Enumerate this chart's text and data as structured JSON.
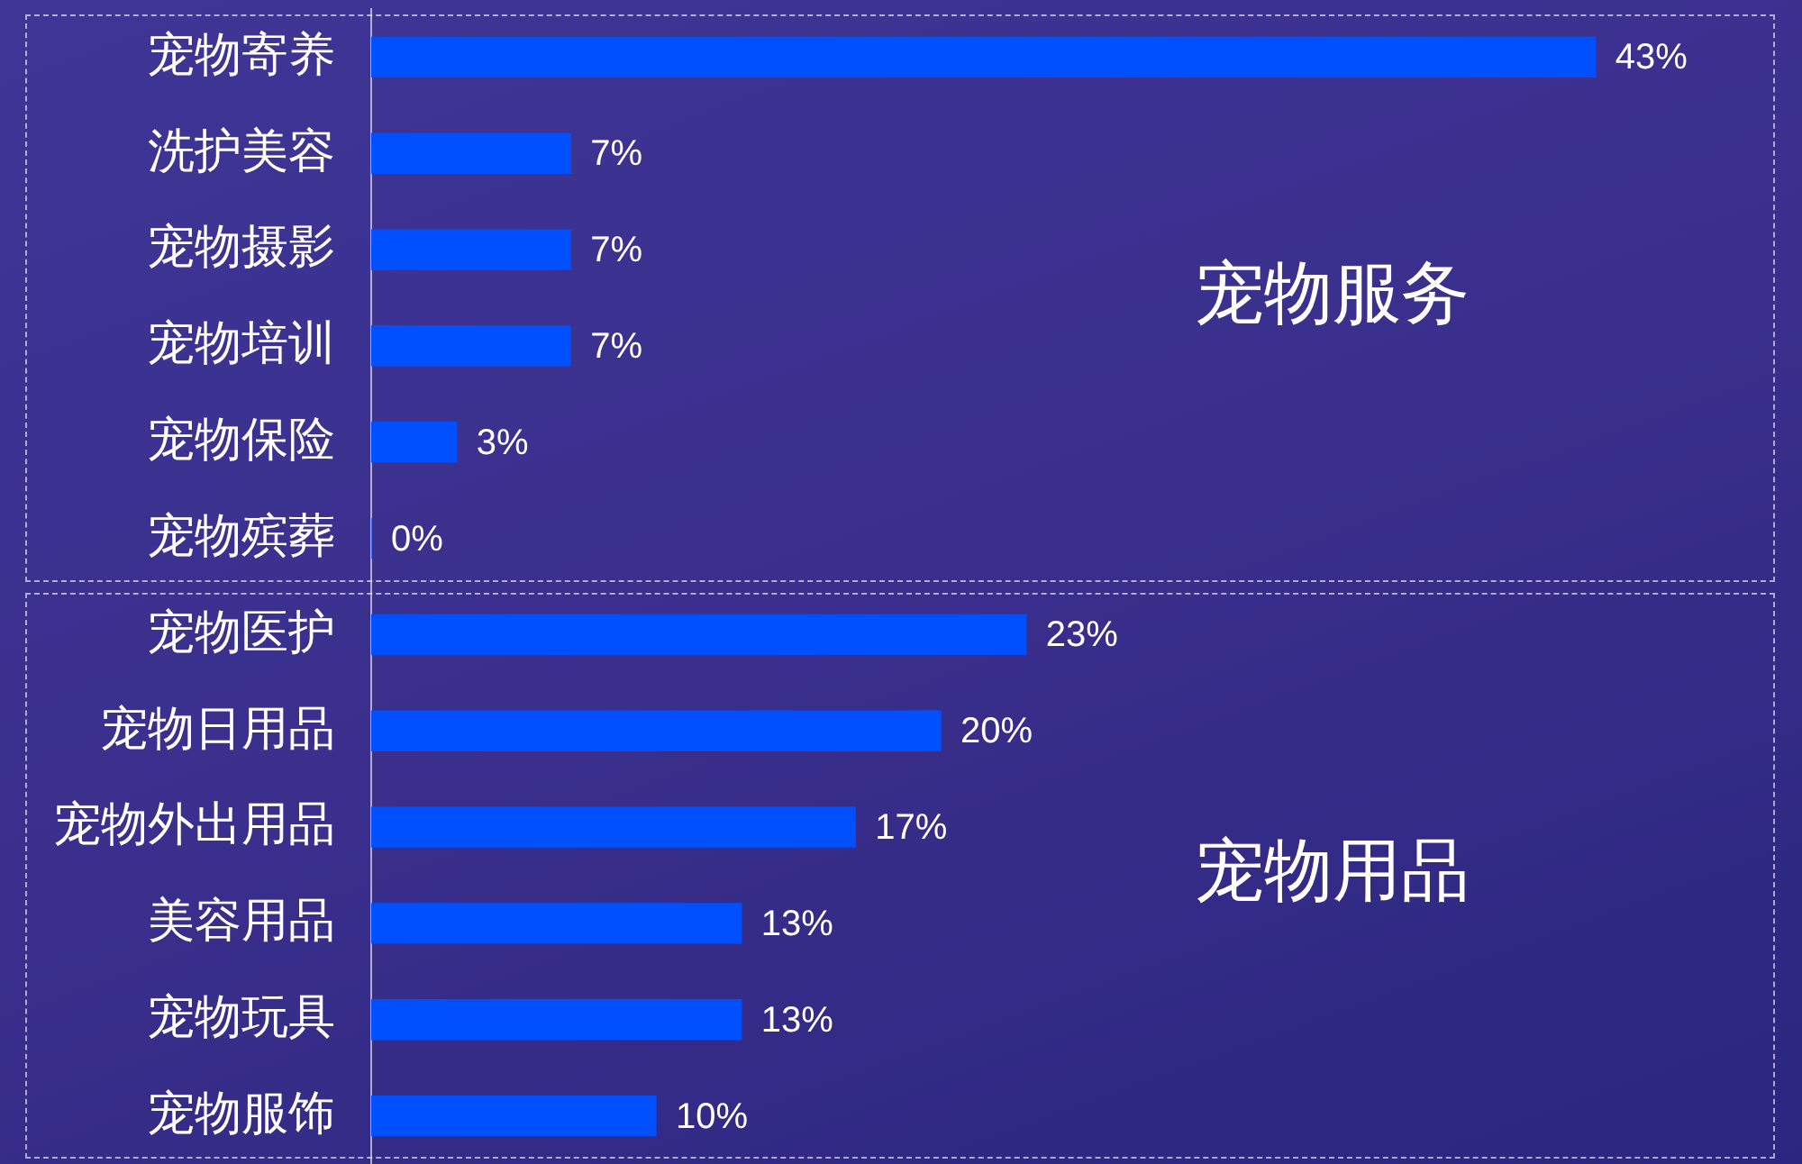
{
  "chart_data": {
    "type": "bar",
    "orientation": "horizontal",
    "categories": [
      "宠物寄养",
      "洗护美容",
      "宠物摄影",
      "宠物培训",
      "宠物保险",
      "宠物殡葬",
      "宠物医护",
      "宠物日用品",
      "宠物外出用品",
      "美容用品",
      "宠物玩具",
      "宠物服饰"
    ],
    "values": [
      43,
      7,
      7,
      7,
      3,
      0,
      23,
      20,
      17,
      13,
      13,
      10
    ],
    "value_labels": [
      "43%",
      "7%",
      "7%",
      "7%",
      "3%",
      "0%",
      "23%",
      "20%",
      "17%",
      "13%",
      "13%",
      "10%"
    ],
    "color": "#0050ff",
    "annotations": [
      "宠物服务",
      "宠物用品"
    ],
    "grid": false,
    "legend": false
  }
}
